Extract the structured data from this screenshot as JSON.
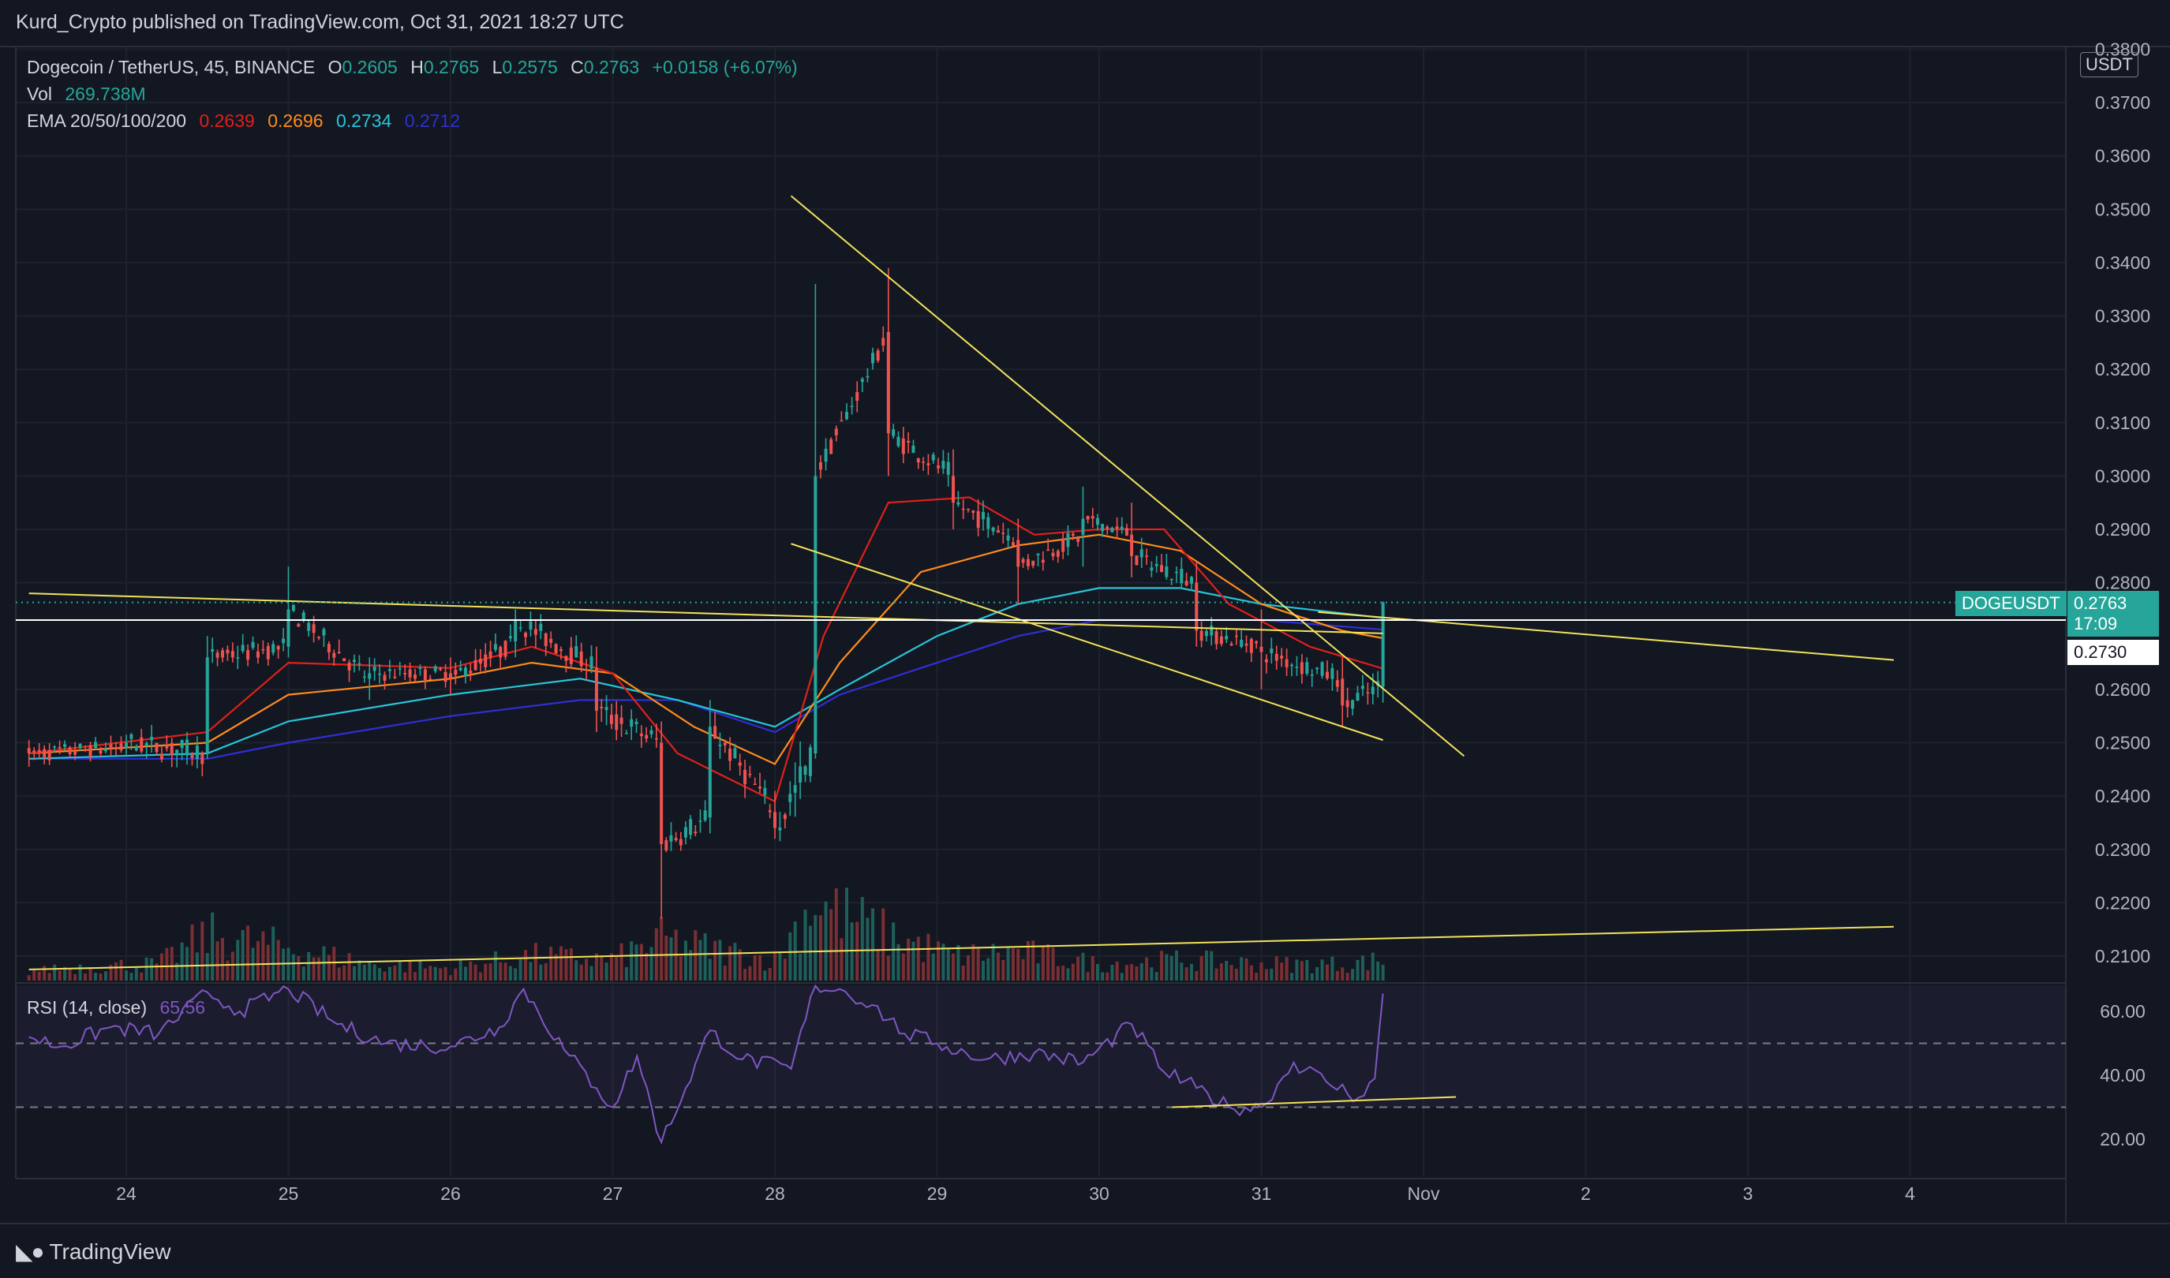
{
  "header": {
    "publisher": "Kurd_Crypto published on TradingView.com, Oct 31, 2021 18:27 UTC"
  },
  "footer": {
    "brand": "TradingView"
  },
  "legend": {
    "symbol": "Dogecoin / TetherUS, 45, BINANCE",
    "o_label": "O",
    "o_value": "0.2605",
    "h_label": "H",
    "h_value": "0.2765",
    "l_label": "L",
    "l_value": "0.2575",
    "c_label": "C",
    "c_value": "0.2763",
    "change": "+0.0158 (+6.07%)",
    "vol_label": "Vol",
    "vol_value": "269.738M",
    "ema_label": "EMA 20/50/100/200",
    "ema20": "0.2639",
    "ema50": "0.2696",
    "ema100": "0.2734",
    "ema200": "0.2712",
    "rsi_label": "RSI (14, close)",
    "rsi_value": "65.56"
  },
  "price_axis": {
    "unit": "USDT",
    "ticks": [
      "0.3800",
      "0.3700",
      "0.3600",
      "0.3500",
      "0.3400",
      "0.3300",
      "0.3200",
      "0.3100",
      "0.3000",
      "0.2900",
      "0.2800",
      "0.2600",
      "0.2500",
      "0.2400",
      "0.2300",
      "0.2200",
      "0.2100"
    ],
    "symbol_tag": "DOGEUSDT",
    "last_price": "0.2763",
    "countdown": "17:09",
    "level_tag": "0.2730"
  },
  "rsi_axis": {
    "ticks": [
      "60.00",
      "40.00",
      "20.00"
    ]
  },
  "time_axis": {
    "ticks": [
      "24",
      "25",
      "26",
      "27",
      "28",
      "29",
      "30",
      "31",
      "Nov",
      "2",
      "3",
      "4"
    ]
  },
  "colors": {
    "background": "#131722",
    "up": "#26a69a",
    "down": "#ef5350",
    "ema20": "#e0201a",
    "ema50": "#ff8c1a",
    "ema100": "#26c6da",
    "ema200": "#2f2fd6",
    "trendline": "#f2e35a",
    "rsi": "#7e57c2",
    "level": "#ffffff"
  },
  "chart_data": [
    {
      "type": "candlestick",
      "title": "Dogecoin / TetherUS, 45, BINANCE",
      "x_unit": "day (Oct 2021)",
      "ylim": [
        0.2075,
        0.38
      ],
      "key_candles": [
        {
          "x": 23.4,
          "o": 0.249,
          "h": 0.2505,
          "l": 0.2455,
          "c": 0.248
        },
        {
          "x": 24.0,
          "o": 0.249,
          "h": 0.2515,
          "l": 0.2475,
          "c": 0.25
        },
        {
          "x": 24.5,
          "o": 0.248,
          "h": 0.27,
          "l": 0.247,
          "c": 0.266
        },
        {
          "x": 25.0,
          "o": 0.268,
          "h": 0.283,
          "l": 0.266,
          "c": 0.275
        },
        {
          "x": 25.5,
          "o": 0.262,
          "h": 0.266,
          "l": 0.258,
          "c": 0.263
        },
        {
          "x": 26.0,
          "o": 0.263,
          "h": 0.266,
          "l": 0.259,
          "c": 0.262
        },
        {
          "x": 26.4,
          "o": 0.269,
          "h": 0.275,
          "l": 0.266,
          "c": 0.273
        },
        {
          "x": 26.9,
          "o": 0.264,
          "h": 0.268,
          "l": 0.252,
          "c": 0.256
        },
        {
          "x": 27.3,
          "o": 0.25,
          "h": 0.254,
          "l": 0.217,
          "c": 0.231
        },
        {
          "x": 27.6,
          "o": 0.236,
          "h": 0.258,
          "l": 0.233,
          "c": 0.253
        },
        {
          "x": 28.0,
          "o": 0.237,
          "h": 0.241,
          "l": 0.232,
          "c": 0.234
        },
        {
          "x": 28.25,
          "o": 0.248,
          "h": 0.336,
          "l": 0.247,
          "c": 0.3
        },
        {
          "x": 28.7,
          "o": 0.327,
          "h": 0.339,
          "l": 0.3,
          "c": 0.308
        },
        {
          "x": 29.1,
          "o": 0.3,
          "h": 0.305,
          "l": 0.29,
          "c": 0.295
        },
        {
          "x": 29.5,
          "o": 0.288,
          "h": 0.292,
          "l": 0.276,
          "c": 0.283
        },
        {
          "x": 29.9,
          "o": 0.289,
          "h": 0.298,
          "l": 0.283,
          "c": 0.292
        },
        {
          "x": 30.2,
          "o": 0.289,
          "h": 0.295,
          "l": 0.281,
          "c": 0.285
        },
        {
          "x": 30.6,
          "o": 0.28,
          "h": 0.284,
          "l": 0.268,
          "c": 0.271
        },
        {
          "x": 31.0,
          "o": 0.268,
          "h": 0.275,
          "l": 0.26,
          "c": 0.267
        },
        {
          "x": 31.5,
          "o": 0.262,
          "h": 0.266,
          "l": 0.253,
          "c": 0.257
        },
        {
          "x": 31.75,
          "o": 0.2605,
          "h": 0.2765,
          "l": 0.2575,
          "c": 0.2763
        }
      ],
      "ema20": [
        [
          23.4,
          0.248
        ],
        [
          24.5,
          0.252
        ],
        [
          25.0,
          0.265
        ],
        [
          26.0,
          0.264
        ],
        [
          26.5,
          0.268
        ],
        [
          27.0,
          0.263
        ],
        [
          27.4,
          0.248
        ],
        [
          28.0,
          0.239
        ],
        [
          28.3,
          0.27
        ],
        [
          28.7,
          0.295
        ],
        [
          29.2,
          0.296
        ],
        [
          29.6,
          0.289
        ],
        [
          30.0,
          0.29
        ],
        [
          30.4,
          0.29
        ],
        [
          30.8,
          0.276
        ],
        [
          31.3,
          0.268
        ],
        [
          31.75,
          0.2639
        ]
      ],
      "ema50": [
        [
          23.4,
          0.248
        ],
        [
          24.5,
          0.25
        ],
        [
          25.0,
          0.259
        ],
        [
          26.0,
          0.262
        ],
        [
          26.5,
          0.265
        ],
        [
          27.0,
          0.263
        ],
        [
          27.5,
          0.253
        ],
        [
          28.0,
          0.246
        ],
        [
          28.4,
          0.265
        ],
        [
          28.9,
          0.282
        ],
        [
          29.5,
          0.287
        ],
        [
          30.0,
          0.289
        ],
        [
          30.5,
          0.286
        ],
        [
          31.0,
          0.276
        ],
        [
          31.5,
          0.271
        ],
        [
          31.75,
          0.2696
        ]
      ],
      "ema100": [
        [
          23.4,
          0.247
        ],
        [
          24.5,
          0.248
        ],
        [
          25.0,
          0.254
        ],
        [
          26.0,
          0.259
        ],
        [
          26.8,
          0.262
        ],
        [
          27.4,
          0.258
        ],
        [
          28.0,
          0.253
        ],
        [
          28.4,
          0.26
        ],
        [
          29.0,
          0.27
        ],
        [
          29.5,
          0.276
        ],
        [
          30.0,
          0.279
        ],
        [
          30.5,
          0.279
        ],
        [
          31.0,
          0.276
        ],
        [
          31.75,
          0.2734
        ]
      ],
      "ema200": [
        [
          23.4,
          0.247
        ],
        [
          24.5,
          0.247
        ],
        [
          25.0,
          0.25
        ],
        [
          26.0,
          0.255
        ],
        [
          26.8,
          0.258
        ],
        [
          27.4,
          0.258
        ],
        [
          28.0,
          0.252
        ],
        [
          28.4,
          0.259
        ],
        [
          29.0,
          0.265
        ],
        [
          29.5,
          0.27
        ],
        [
          30.0,
          0.273
        ],
        [
          30.5,
          0.273
        ],
        [
          31.0,
          0.273
        ],
        [
          31.75,
          0.2712
        ]
      ],
      "horizontal_level": 0.273,
      "last_price": 0.2763,
      "volume_relative": [
        [
          23.5,
          0.15
        ],
        [
          24.2,
          0.2
        ],
        [
          24.5,
          0.55
        ],
        [
          25.0,
          0.4
        ],
        [
          25.5,
          0.2
        ],
        [
          26.0,
          0.15
        ],
        [
          26.5,
          0.3
        ],
        [
          27.0,
          0.25
        ],
        [
          27.3,
          0.5
        ],
        [
          27.7,
          0.35
        ],
        [
          28.0,
          0.25
        ],
        [
          28.25,
          1.0
        ],
        [
          28.3,
          0.9
        ],
        [
          28.7,
          0.55
        ],
        [
          29.1,
          0.3
        ],
        [
          29.5,
          0.35
        ],
        [
          30.0,
          0.2
        ],
        [
          30.5,
          0.25
        ],
        [
          31.0,
          0.2
        ],
        [
          31.5,
          0.2
        ],
        [
          31.75,
          0.25
        ]
      ]
    },
    {
      "type": "line",
      "title": "RSI (14, close)",
      "ylim": [
        15,
        68
      ],
      "levels": [
        50,
        30
      ],
      "series": [
        {
          "name": "RSI (14, close)",
          "points": [
            [
              23.4,
              52
            ],
            [
              23.6,
              49
            ],
            [
              23.9,
              55
            ],
            [
              24.2,
              53
            ],
            [
              24.5,
              66
            ],
            [
              24.7,
              60
            ],
            [
              25.0,
              67
            ],
            [
              25.3,
              56
            ],
            [
              25.6,
              50
            ],
            [
              26.0,
              49
            ],
            [
              26.3,
              55
            ],
            [
              26.45,
              67
            ],
            [
              26.7,
              48
            ],
            [
              26.9,
              36
            ],
            [
              27.0,
              30
            ],
            [
              27.15,
              46
            ],
            [
              27.3,
              19
            ],
            [
              27.45,
              36
            ],
            [
              27.6,
              54
            ],
            [
              27.8,
              45
            ],
            [
              28.1,
              42
            ],
            [
              28.25,
              68
            ],
            [
              28.4,
              67
            ],
            [
              28.6,
              62
            ],
            [
              28.8,
              53
            ],
            [
              29.0,
              50
            ],
            [
              29.3,
              45
            ],
            [
              29.6,
              47
            ],
            [
              29.9,
              44
            ],
            [
              30.2,
              56
            ],
            [
              30.4,
              41
            ],
            [
              30.6,
              36
            ],
            [
              30.8,
              30
            ],
            [
              31.0,
              30
            ],
            [
              31.2,
              44
            ],
            [
              31.4,
              38
            ],
            [
              31.6,
              33
            ],
            [
              31.7,
              39
            ],
            [
              31.75,
              65.56
            ]
          ]
        }
      ]
    }
  ]
}
